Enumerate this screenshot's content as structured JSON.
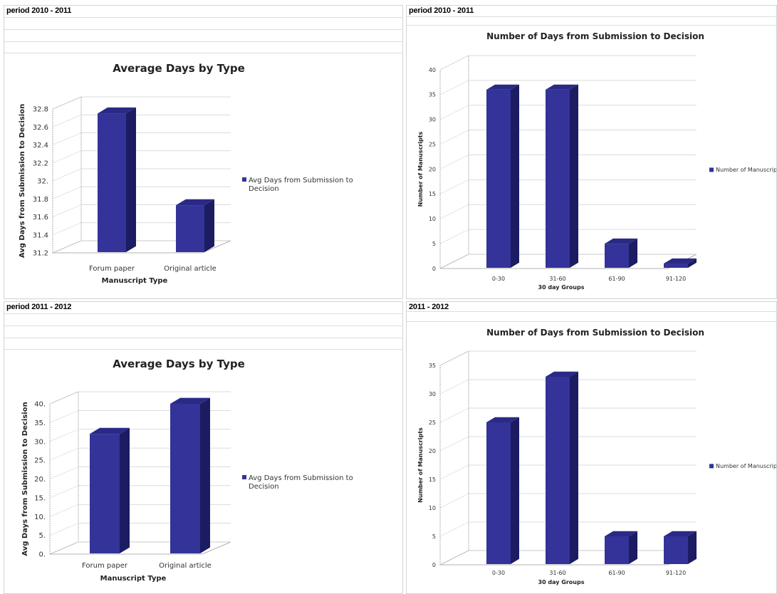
{
  "panels": [
    {
      "period_label": "period 2010 - 2011"
    },
    {
      "period_label": "period 2010 - 2011"
    },
    {
      "period_label": "period 2011 - 2012"
    },
    {
      "period_label": "2011 - 2012"
    }
  ],
  "colors": {
    "bar_front": "#333399",
    "bar_top": "#2a2a86",
    "bar_side": "#1c1c62",
    "grid": "#cfcfcf",
    "axis": "#9a9a9a"
  },
  "chart_data": [
    {
      "type": "bar",
      "title": "Average Days by Type",
      "xlabel": "Manuscript Type",
      "ylabel": "Avg Days from Submission to Decision",
      "categories": [
        "Forum paper",
        "Original article"
      ],
      "series": [
        {
          "name": "Avg Days from Submission to Decision",
          "values": [
            32.75,
            31.73
          ]
        }
      ],
      "ylim": [
        31.2,
        32.8
      ],
      "yticks": [
        "31.2",
        "31.4",
        "31.6",
        "31.8",
        "32.",
        "32.2",
        "32.4",
        "32.6",
        "32.8"
      ],
      "legend": [
        "Avg Days from Submission to",
        "Decision"
      ],
      "legend_position": "right",
      "grid": true
    },
    {
      "type": "bar",
      "title": "Number of Days from Submission to Decision",
      "xlabel": "30 day Groups",
      "ylabel": "Number of Manuscripts",
      "categories": [
        "0-30",
        "31-60",
        "61-90",
        "91-120"
      ],
      "series": [
        {
          "name": "Number of Manuscripts",
          "values": [
            36,
            36,
            5,
            1
          ]
        }
      ],
      "ylim": [
        0,
        40
      ],
      "yticks": [
        "0",
        "5",
        "10",
        "15",
        "20",
        "25",
        "30",
        "35",
        "40"
      ],
      "legend": [
        "Number of Manuscripts"
      ],
      "legend_position": "right",
      "grid": true
    },
    {
      "type": "bar",
      "title": "Average Days by Type",
      "xlabel": "Manuscript Type",
      "ylabel": "Avg Days from Submission to Decision",
      "categories": [
        "Forum paper",
        "Original article"
      ],
      "series": [
        {
          "name": "Avg Days from Submission to Decision",
          "values": [
            32,
            40
          ]
        }
      ],
      "ylim": [
        0,
        40
      ],
      "yticks": [
        "0.",
        "5.",
        "10.",
        "15.",
        "20.",
        "25.",
        "30.",
        "35.",
        "40."
      ],
      "legend": [
        "Avg Days from Submission to",
        "Decision"
      ],
      "legend_position": "right",
      "grid": true
    },
    {
      "type": "bar",
      "title": "Number of Days from Submission to Decision",
      "xlabel": "30 day Groups",
      "ylabel": "Number of Manuscripts",
      "categories": [
        "0-30",
        "31-60",
        "61-90",
        "91-120"
      ],
      "series": [
        {
          "name": "Number of Manuscripts",
          "values": [
            25,
            33,
            5,
            5
          ]
        }
      ],
      "ylim": [
        0,
        35
      ],
      "yticks": [
        "0",
        "5",
        "10",
        "15",
        "20",
        "25",
        "30",
        "35"
      ],
      "legend": [
        "Number of Manuscripts"
      ],
      "legend_position": "right",
      "grid": true
    }
  ]
}
